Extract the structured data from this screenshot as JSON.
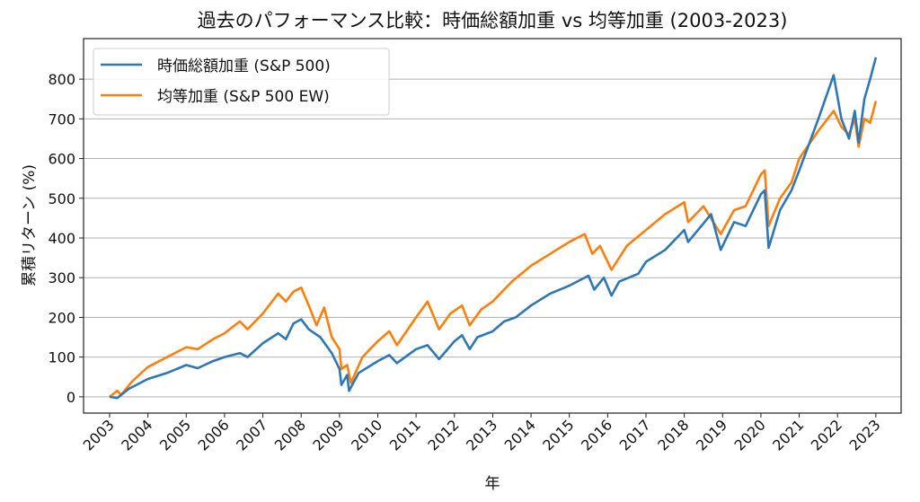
{
  "chart_data": {
    "type": "line",
    "title": "過去のパフォーマンス比較：時価総額加重 vs 均等加重 (2003-2023)",
    "xlabel": "年",
    "ylabel": "累積リターン (%)",
    "xlim": [
      2002.32,
      2023.66
    ],
    "ylim": [
      -41,
      902
    ],
    "xticks": [
      2003,
      2004,
      2005,
      2006,
      2007,
      2008,
      2009,
      2010,
      2011,
      2012,
      2013,
      2014,
      2015,
      2016,
      2017,
      2018,
      2019,
      2020,
      2021,
      2022,
      2023
    ],
    "yticks": [
      0,
      100,
      200,
      300,
      400,
      500,
      600,
      700,
      800
    ],
    "grid": "horizontal",
    "legend_position": "top-left",
    "series": [
      {
        "name": "時価総額加重 (S&P 500)",
        "color": "#2f77b4",
        "x": [
          2003.0,
          2003.2,
          2003.5,
          2004.0,
          2004.5,
          2005.0,
          2005.3,
          2005.7,
          2006.0,
          2006.4,
          2006.6,
          2007.0,
          2007.4,
          2007.6,
          2007.8,
          2008.0,
          2008.2,
          2008.5,
          2008.8,
          2009.0,
          2009.05,
          2009.2,
          2009.25,
          2009.5,
          2010.0,
          2010.3,
          2010.5,
          2011.0,
          2011.3,
          2011.6,
          2012.0,
          2012.2,
          2012.4,
          2012.6,
          2013.0,
          2013.3,
          2013.6,
          2014.0,
          2014.5,
          2015.0,
          2015.5,
          2015.65,
          2015.9,
          2016.1,
          2016.3,
          2016.8,
          2017.0,
          2017.5,
          2018.0,
          2018.1,
          2018.7,
          2018.95,
          2019.3,
          2019.6,
          2020.0,
          2020.1,
          2020.2,
          2020.5,
          2020.8,
          2021.0,
          2021.5,
          2021.9,
          2022.1,
          2022.3,
          2022.45,
          2022.55,
          2022.7,
          2022.85,
          2023.0
        ],
        "y": [
          0,
          -3,
          20,
          45,
          60,
          80,
          72,
          90,
          100,
          110,
          100,
          135,
          160,
          145,
          185,
          195,
          170,
          150,
          110,
          70,
          30,
          55,
          15,
          60,
          90,
          105,
          85,
          120,
          130,
          95,
          140,
          155,
          120,
          150,
          165,
          190,
          200,
          230,
          260,
          280,
          305,
          270,
          300,
          255,
          290,
          310,
          340,
          370,
          420,
          390,
          460,
          370,
          440,
          430,
          510,
          520,
          375,
          470,
          520,
          570,
          700,
          810,
          700,
          650,
          720,
          640,
          750,
          800,
          855
        ]
      },
      {
        "name": "均等加重 (S&P 500 EW)",
        "color": "#ff7f0e",
        "x": [
          2003.0,
          2003.2,
          2003.3,
          2003.6,
          2004.0,
          2004.5,
          2005.0,
          2005.3,
          2005.7,
          2006.0,
          2006.4,
          2006.6,
          2007.0,
          2007.4,
          2007.6,
          2007.8,
          2008.0,
          2008.2,
          2008.4,
          2008.6,
          2008.8,
          2009.0,
          2009.05,
          2009.2,
          2009.3,
          2009.6,
          2010.0,
          2010.3,
          2010.5,
          2011.0,
          2011.3,
          2011.6,
          2011.9,
          2012.2,
          2012.4,
          2012.7,
          2013.0,
          2013.5,
          2014.0,
          2014.5,
          2015.0,
          2015.4,
          2015.6,
          2015.8,
          2016.1,
          2016.5,
          2017.0,
          2017.5,
          2018.0,
          2018.1,
          2018.5,
          2018.95,
          2019.3,
          2019.6,
          2020.0,
          2020.1,
          2020.2,
          2020.5,
          2020.8,
          2021.0,
          2021.5,
          2021.9,
          2022.1,
          2022.3,
          2022.45,
          2022.55,
          2022.7,
          2022.85,
          2023.0
        ],
        "y": [
          0,
          15,
          5,
          40,
          75,
          100,
          125,
          120,
          145,
          160,
          190,
          170,
          210,
          260,
          240,
          265,
          275,
          230,
          180,
          225,
          150,
          120,
          70,
          80,
          35,
          100,
          140,
          165,
          130,
          200,
          240,
          170,
          210,
          230,
          180,
          220,
          240,
          290,
          330,
          360,
          390,
          410,
          360,
          380,
          320,
          380,
          420,
          460,
          490,
          440,
          480,
          410,
          470,
          480,
          560,
          570,
          430,
          500,
          540,
          600,
          670,
          720,
          680,
          660,
          700,
          630,
          700,
          690,
          745
        ]
      }
    ]
  }
}
